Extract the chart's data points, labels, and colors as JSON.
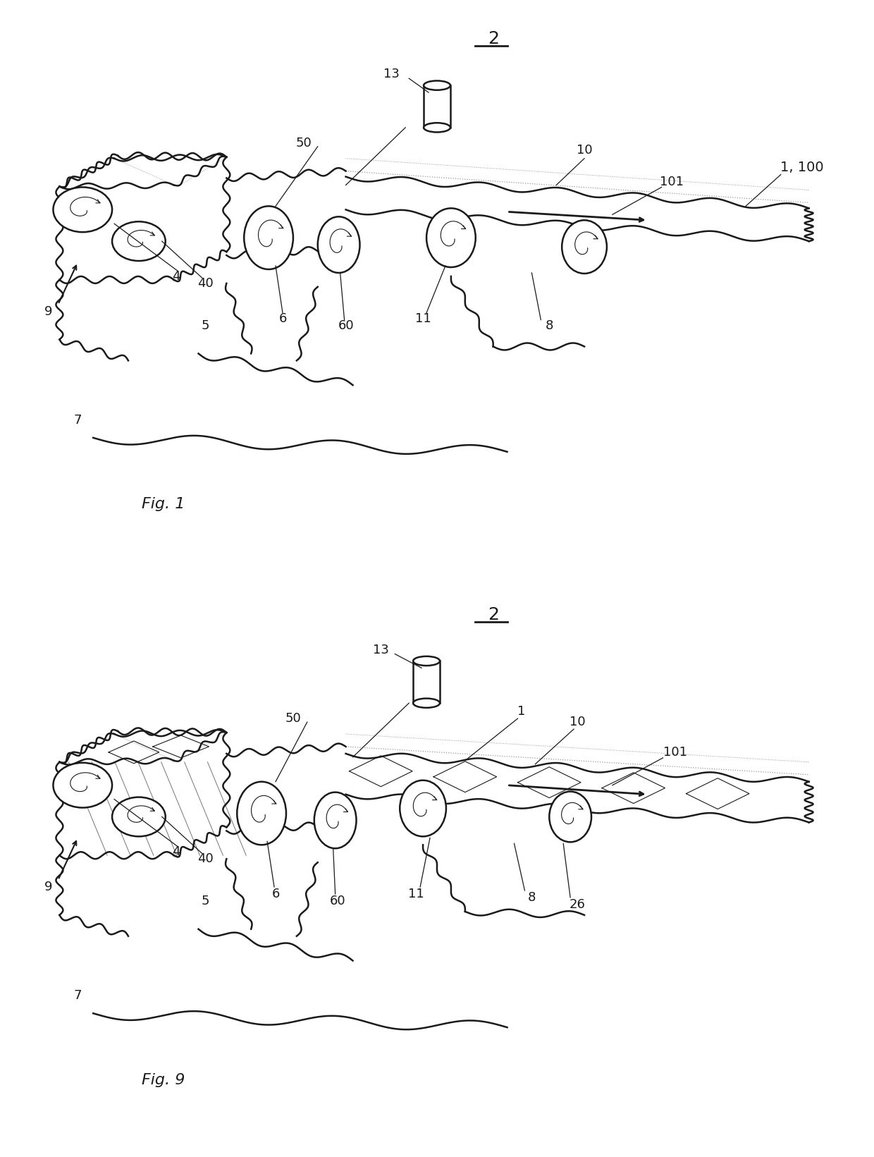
{
  "bg_color": "#ffffff",
  "line_color": "#1a1a1a",
  "fig_width": 12.4,
  "fig_height": 16.41,
  "fig1_label": "Fig. 1",
  "fig9_label": "Fig. 9",
  "lw_main": 1.8,
  "lw_thin": 0.9,
  "lw_dot": 0.7,
  "fontsize_label": 13,
  "fontsize_fig": 16
}
